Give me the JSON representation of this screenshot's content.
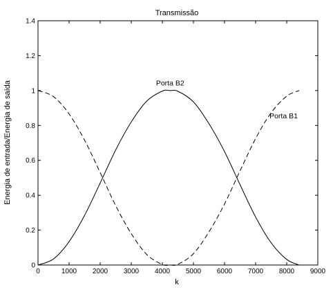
{
  "chart_data": {
    "type": "line",
    "title": "Transmissão",
    "xlabel": "k",
    "ylabel": "Energia de entrada/Energia de saída",
    "xlim": [
      0,
      9000
    ],
    "ylim": [
      0,
      1.4
    ],
    "xticks": [
      "0",
      "1000",
      "2000",
      "3000",
      "4000",
      "5000",
      "6000",
      "7000",
      "8000",
      "9000"
    ],
    "yticks": [
      "0",
      "0.2",
      "0.4",
      "0.6",
      "0.8",
      "1",
      "1.2",
      "1.4"
    ],
    "grid": false,
    "series": [
      {
        "name": "Porta B2",
        "style": "solid",
        "color": "#000000",
        "x": [
          0,
          500,
          1000,
          1500,
          2000,
          2500,
          3000,
          3500,
          4000,
          4250,
          4500,
          5000,
          5500,
          6000,
          6500,
          7000,
          7500,
          8000,
          8400
        ],
        "y": [
          0.0,
          0.035,
          0.134,
          0.285,
          0.47,
          0.66,
          0.82,
          0.94,
          0.997,
          1.0,
          0.996,
          0.935,
          0.81,
          0.65,
          0.46,
          0.275,
          0.127,
          0.032,
          0.0
        ]
      },
      {
        "name": "Porta B1",
        "style": "dashed",
        "color": "#000000",
        "x": [
          0,
          500,
          1000,
          1500,
          2000,
          2500,
          3000,
          3500,
          4000,
          4250,
          4500,
          5000,
          5500,
          6000,
          6500,
          7000,
          7500,
          8000,
          8400
        ],
        "y": [
          1.0,
          0.965,
          0.866,
          0.715,
          0.53,
          0.34,
          0.18,
          0.06,
          0.003,
          0.0,
          0.004,
          0.065,
          0.19,
          0.35,
          0.54,
          0.725,
          0.873,
          0.968,
          1.0
        ]
      }
    ],
    "annotations": [
      {
        "text": "Porta B2",
        "x": 4250,
        "y": 1.03
      },
      {
        "text": "Porta B1",
        "x": 7900,
        "y": 0.84
      }
    ]
  }
}
